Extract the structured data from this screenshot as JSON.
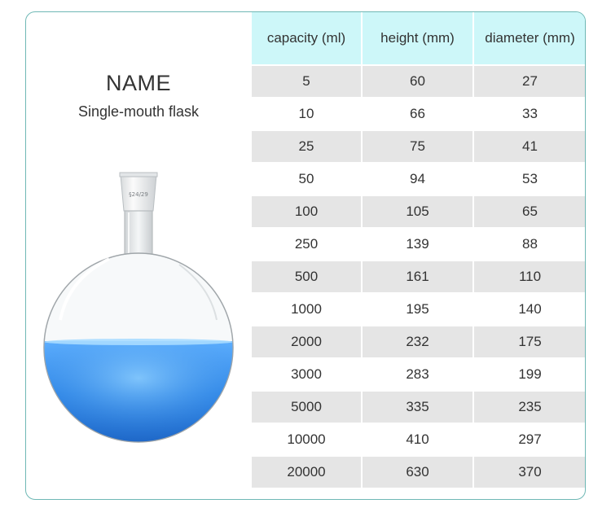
{
  "product": {
    "title": "NAME",
    "name": "Single-mouth flask",
    "joint_marking": "§24/29"
  },
  "colors": {
    "border": "#6fb8b5",
    "header_bg": "#cdf7f9",
    "stripe_bg": "#e5e5e5",
    "liquid": "#2f86e6"
  },
  "table": {
    "headers": [
      "capacity (ml)",
      "height (mm)",
      "diameter (mm)"
    ],
    "rows": [
      [
        "5",
        "60",
        "27"
      ],
      [
        "10",
        "66",
        "33"
      ],
      [
        "25",
        "75",
        "41"
      ],
      [
        "50",
        "94",
        "53"
      ],
      [
        "100",
        "105",
        "65"
      ],
      [
        "250",
        "139",
        "88"
      ],
      [
        "500",
        "161",
        "110"
      ],
      [
        "1000",
        "195",
        "140"
      ],
      [
        "2000",
        "232",
        "175"
      ],
      [
        "3000",
        "283",
        "199"
      ],
      [
        "5000",
        "335",
        "235"
      ],
      [
        "10000",
        "410",
        "297"
      ],
      [
        "20000",
        "630",
        "370"
      ]
    ]
  }
}
